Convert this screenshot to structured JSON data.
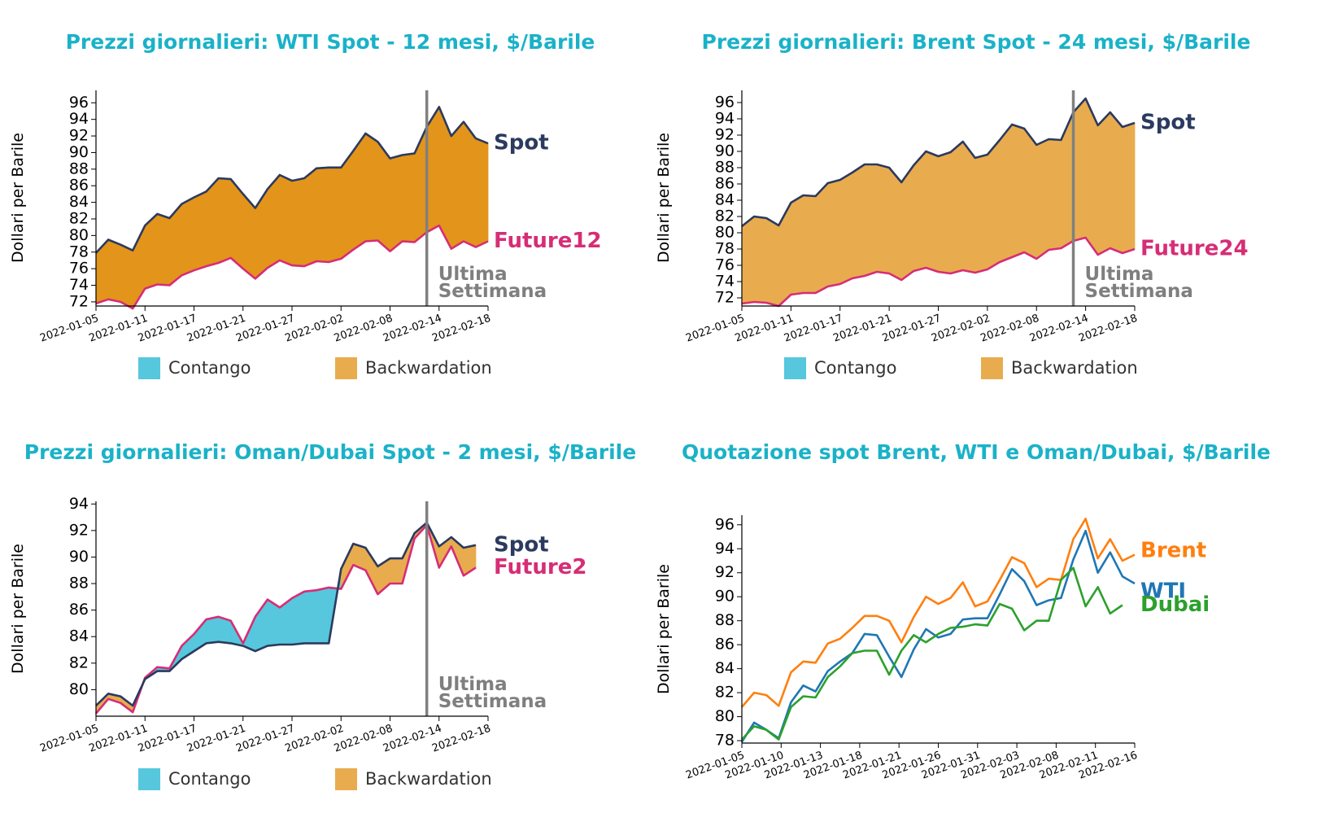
{
  "colors": {
    "title": "#1ab2c8",
    "spot": "#2b3a5e",
    "future": "#d62d76",
    "contango": "#56c7dc",
    "backwardation_dark": "#e3941a",
    "backwardation": "#e8ac4e",
    "vline": "#808080",
    "brent": "#ff7f0e",
    "wti": "#1f77b4",
    "dubai": "#2ca02c"
  },
  "legend": {
    "contango": "Contango",
    "backwardation": "Backwardation"
  },
  "chart_data": [
    {
      "type": "area",
      "title": "Prezzi giornalieri: WTI Spot - 12 mesi, $/Barile",
      "ylabel": "Dollari per Barile",
      "ylim": [
        71.5,
        97.5
      ],
      "yticks": [
        72,
        74,
        76,
        78,
        80,
        82,
        84,
        86,
        88,
        90,
        92,
        94,
        96
      ],
      "x_tick_labels": [
        "2022-01-05",
        "2022-01-11",
        "2022-01-17",
        "2022-01-21",
        "2022-01-27",
        "2022-02-02",
        "2022-02-08",
        "2022-02-14",
        "2022-02-18"
      ],
      "xlim": [
        0,
        32
      ],
      "vline_x": 27,
      "annotation": [
        "Ultima",
        "Settimana"
      ],
      "area_color": "#e3941a",
      "series": [
        {
          "name": "Spot",
          "values": [
            77.9,
            79.5,
            78.9,
            78.2,
            81.2,
            82.6,
            82.1,
            83.8,
            84.6,
            85.3,
            86.9,
            86.8,
            85.0,
            83.3,
            85.6,
            87.3,
            86.6,
            86.9,
            88.1,
            88.2,
            88.2,
            90.2,
            92.3,
            91.3,
            89.3,
            89.7,
            89.9,
            93.1,
            95.5,
            92.0,
            93.7,
            91.7,
            91.1
          ]
        },
        {
          "name": "Future12",
          "values": [
            71.8,
            72.3,
            72.0,
            71.2,
            73.6,
            74.1,
            74.0,
            75.2,
            75.8,
            76.3,
            76.7,
            77.3,
            76.0,
            74.8,
            76.1,
            77.0,
            76.4,
            76.3,
            76.9,
            76.8,
            77.2,
            78.3,
            79.3,
            79.4,
            78.1,
            79.3,
            79.2,
            80.4,
            81.2,
            78.4,
            79.3,
            78.6,
            79.3
          ]
        }
      ]
    },
    {
      "type": "area",
      "title": "Prezzi giornalieri: Brent Spot - 24 mesi, $/Barile",
      "ylabel": "Dollari per Barile",
      "ylim": [
        71.0,
        97.5
      ],
      "yticks": [
        72,
        74,
        76,
        78,
        80,
        82,
        84,
        86,
        88,
        90,
        92,
        94,
        96
      ],
      "x_tick_labels": [
        "2022-01-05",
        "2022-01-11",
        "2022-01-17",
        "2022-01-21",
        "2022-01-27",
        "2022-02-02",
        "2022-02-08",
        "2022-02-14",
        "2022-02-18"
      ],
      "xlim": [
        0,
        32
      ],
      "vline_x": 27,
      "annotation": [
        "Ultima",
        "Settimana"
      ],
      "area_color": "#e8ac4e",
      "series": [
        {
          "name": "Spot",
          "values": [
            80.8,
            82.0,
            81.8,
            80.9,
            83.7,
            84.6,
            84.5,
            86.1,
            86.5,
            87.4,
            88.4,
            88.4,
            88.0,
            86.2,
            88.3,
            90.0,
            89.4,
            89.9,
            91.2,
            89.2,
            89.6,
            91.4,
            93.3,
            92.8,
            90.8,
            91.5,
            91.4,
            94.8,
            96.5,
            93.2,
            94.8,
            93.0,
            93.5
          ]
        },
        {
          "name": "Future24",
          "values": [
            71.3,
            71.5,
            71.4,
            71.0,
            72.4,
            72.6,
            72.6,
            73.4,
            73.7,
            74.4,
            74.7,
            75.2,
            75.0,
            74.2,
            75.3,
            75.7,
            75.2,
            75.0,
            75.4,
            75.1,
            75.5,
            76.4,
            77.0,
            77.6,
            76.8,
            77.9,
            78.1,
            79.0,
            79.4,
            77.3,
            78.1,
            77.5,
            78.0
          ]
        }
      ]
    },
    {
      "type": "area",
      "title": "Prezzi giornalieri: Oman/Dubai Spot - 2 mesi, $/Barile",
      "ylabel": "Dollari per Barile",
      "ylim": [
        78.0,
        94.2
      ],
      "yticks": [
        80,
        82,
        84,
        86,
        88,
        90,
        92,
        94
      ],
      "x_tick_labels": [
        "2022-01-05",
        "2022-01-11",
        "2022-01-17",
        "2022-01-21",
        "2022-01-27",
        "2022-02-02",
        "2022-02-08",
        "2022-02-14",
        "2022-02-18"
      ],
      "xlim": [
        0,
        32
      ],
      "vline_x": 27,
      "annotation": [
        "Ultima",
        "Settimana"
      ],
      "area_color": "#e8ac4e",
      "series": [
        {
          "name": "Spot",
          "values": [
            78.8,
            79.7,
            79.5,
            78.8,
            80.8,
            81.4,
            81.4,
            82.3,
            82.9,
            83.5,
            83.6,
            83.5,
            83.3,
            82.9,
            83.3,
            83.4,
            83.4,
            83.5,
            83.5,
            83.5,
            89.1,
            91.0,
            90.7,
            89.3,
            89.9,
            89.9,
            91.8,
            92.6,
            90.8,
            91.5,
            90.7,
            90.9
          ]
        },
        {
          "name": "Future2",
          "values": [
            78.2,
            79.3,
            79.0,
            78.3,
            80.9,
            81.7,
            81.6,
            83.3,
            84.2,
            85.3,
            85.5,
            85.2,
            83.5,
            85.5,
            86.8,
            86.2,
            86.9,
            87.4,
            87.5,
            87.7,
            87.6,
            89.4,
            89.0,
            87.2,
            88.0,
            88.0,
            91.4,
            92.4,
            89.2,
            90.8,
            88.6,
            89.2
          ]
        }
      ]
    },
    {
      "type": "line",
      "title": "Quotazione spot Brent, WTI e Oman/Dubai, $/Barile",
      "ylabel": "Dollari per Barile",
      "ylim": [
        77.8,
        96.8
      ],
      "yticks": [
        78,
        80,
        82,
        84,
        86,
        88,
        90,
        92,
        94,
        96
      ],
      "x_tick_labels": [
        "2022-01-05",
        "2022-01-10",
        "2022-01-13",
        "2022-01-18",
        "2022-01-21",
        "2022-01-26",
        "2022-01-31",
        "2022-02-03",
        "2022-02-08",
        "2022-02-11",
        "2022-02-16"
      ],
      "xlim": [
        0,
        32
      ],
      "series": [
        {
          "name": "Brent",
          "values": [
            80.8,
            82.0,
            81.8,
            80.9,
            83.7,
            84.6,
            84.5,
            86.1,
            86.5,
            87.4,
            88.4,
            88.4,
            88.0,
            86.2,
            88.3,
            90.0,
            89.4,
            89.9,
            91.2,
            89.2,
            89.6,
            91.4,
            93.3,
            92.8,
            90.8,
            91.5,
            91.4,
            94.8,
            96.5,
            93.2,
            94.8,
            93.0,
            93.5
          ]
        },
        {
          "name": "WTI",
          "values": [
            77.9,
            79.5,
            78.9,
            78.2,
            81.2,
            82.6,
            82.1,
            83.8,
            84.6,
            85.3,
            86.9,
            86.8,
            85.0,
            83.3,
            85.6,
            87.3,
            86.6,
            86.9,
            88.1,
            88.2,
            88.2,
            90.2,
            92.3,
            91.3,
            89.3,
            89.7,
            89.9,
            93.1,
            95.5,
            92.0,
            93.7,
            91.7,
            91.1
          ]
        },
        {
          "name": "Dubai",
          "values": [
            78.1,
            79.2,
            78.9,
            78.1,
            80.8,
            81.7,
            81.6,
            83.3,
            84.2,
            85.3,
            85.5,
            85.5,
            83.5,
            85.5,
            86.8,
            86.2,
            86.9,
            87.4,
            87.5,
            87.7,
            87.6,
            89.4,
            89.0,
            87.2,
            88.0,
            88.0,
            91.4,
            92.4,
            89.2,
            90.8,
            88.6,
            89.3
          ]
        }
      ]
    }
  ]
}
